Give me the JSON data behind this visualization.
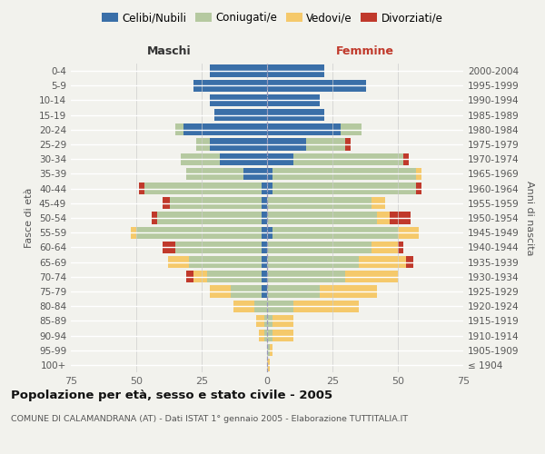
{
  "age_groups": [
    "100+",
    "95-99",
    "90-94",
    "85-89",
    "80-84",
    "75-79",
    "70-74",
    "65-69",
    "60-64",
    "55-59",
    "50-54",
    "45-49",
    "40-44",
    "35-39",
    "30-34",
    "25-29",
    "20-24",
    "15-19",
    "10-14",
    "5-9",
    "0-4"
  ],
  "birth_years": [
    "≤ 1904",
    "1905-1909",
    "1910-1914",
    "1915-1919",
    "1920-1924",
    "1925-1929",
    "1930-1934",
    "1935-1939",
    "1940-1944",
    "1945-1949",
    "1950-1954",
    "1955-1959",
    "1960-1964",
    "1965-1969",
    "1970-1974",
    "1975-1979",
    "1980-1984",
    "1985-1989",
    "1990-1994",
    "1995-1999",
    "2000-2004"
  ],
  "males": {
    "celibe": [
      0,
      0,
      0,
      0,
      0,
      2,
      2,
      2,
      2,
      2,
      2,
      2,
      2,
      9,
      18,
      22,
      32,
      20,
      22,
      28,
      22
    ],
    "coniugato": [
      0,
      0,
      1,
      1,
      5,
      12,
      21,
      28,
      33,
      48,
      40,
      35,
      45,
      22,
      15,
      5,
      3,
      0,
      0,
      0,
      0
    ],
    "vedovo": [
      0,
      0,
      2,
      3,
      8,
      8,
      5,
      8,
      0,
      2,
      0,
      0,
      0,
      0,
      0,
      0,
      0,
      0,
      0,
      0,
      0
    ],
    "divorziato": [
      0,
      0,
      0,
      0,
      0,
      0,
      3,
      0,
      5,
      0,
      2,
      3,
      2,
      0,
      0,
      0,
      0,
      0,
      0,
      0,
      0
    ]
  },
  "females": {
    "nubile": [
      0,
      0,
      0,
      0,
      0,
      0,
      0,
      0,
      0,
      2,
      0,
      0,
      2,
      2,
      10,
      15,
      28,
      22,
      20,
      38,
      22
    ],
    "coniugata": [
      0,
      1,
      2,
      2,
      10,
      20,
      30,
      35,
      40,
      48,
      42,
      40,
      55,
      55,
      42,
      15,
      8,
      0,
      0,
      0,
      0
    ],
    "vedova": [
      1,
      1,
      8,
      8,
      25,
      22,
      20,
      18,
      10,
      8,
      5,
      5,
      0,
      2,
      0,
      0,
      0,
      0,
      0,
      0,
      0
    ],
    "divorziata": [
      0,
      0,
      0,
      0,
      0,
      0,
      0,
      3,
      2,
      0,
      8,
      0,
      2,
      0,
      2,
      2,
      0,
      0,
      0,
      0,
      0
    ]
  },
  "color_celibe": "#3a6fa8",
  "color_coniugato": "#b5c9a0",
  "color_vedovo": "#f5c96b",
  "color_divorziato": "#c0392b",
  "xlim": 75,
  "title": "Popolazione per età, sesso e stato civile - 2005",
  "subtitle": "COMUNE DI CALAMANDRANA (AT) - Dati ISTAT 1° gennaio 2005 - Elaborazione TUTTITALIA.IT",
  "ylabel_left": "Fasce di età",
  "ylabel_right": "Anni di nascita",
  "xlabel_left": "Maschi",
  "xlabel_right": "Femmine",
  "bg_color": "#f2f2ed"
}
